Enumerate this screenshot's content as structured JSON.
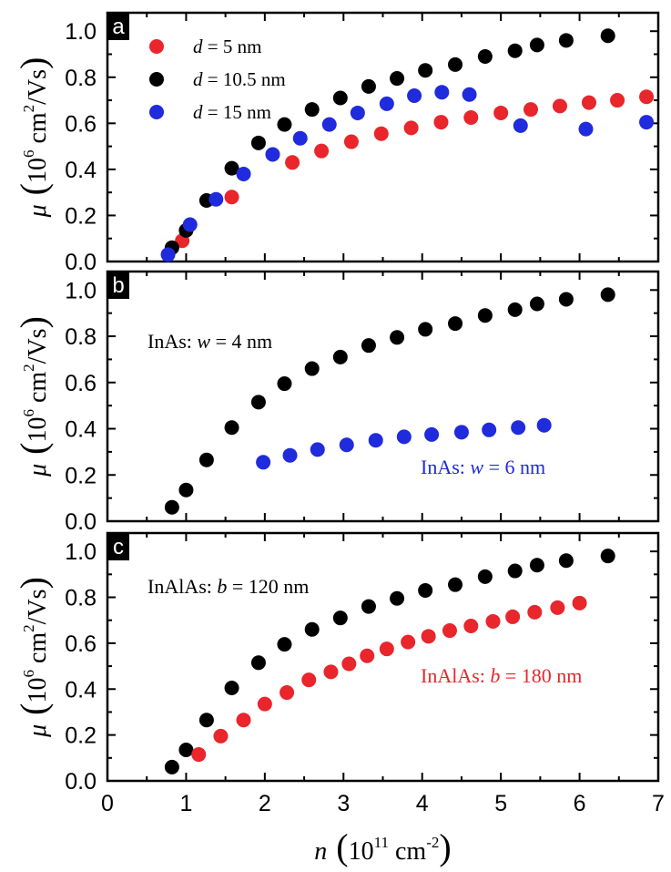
{
  "figure": {
    "x_axis": {
      "symbol": "n",
      "unit_prefix": "10",
      "unit_exp": "11",
      "unit_body": " cm",
      "unit_exp2": "-2",
      "range": [
        0,
        7
      ],
      "ticks": [
        "0",
        "1",
        "2",
        "3",
        "4",
        "5",
        "6",
        "7"
      ]
    },
    "y_axis": {
      "symbol": "μ",
      "unit_prefix": "10",
      "unit_exp": "6",
      "unit_body": " cm",
      "unit_exp2": "2",
      "unit_tail": "/Vs",
      "range": [
        0,
        1.08
      ],
      "ticks": [
        "0.0",
        "0.2",
        "0.4",
        "0.6",
        "0.8",
        "1.0"
      ]
    }
  },
  "colors": {
    "black": "#000000",
    "red": "#e8262b",
    "blue": "#1f2bdc"
  },
  "chart_data": [
    {
      "type": "scatter",
      "panel": "a",
      "xlabel": "n (10^11 cm^-2)",
      "ylabel": "μ (10^6 cm^2/Vs)",
      "xlim": [
        0,
        7
      ],
      "ylim": [
        0,
        1.08
      ],
      "legend_position": "top-left",
      "series": [
        {
          "name": "d = 5 nm",
          "label_var": "d",
          "label_rest": " = 5 nm",
          "color": "#e8262b",
          "x": [
            0.95,
            1.58,
            2.35,
            2.72,
            3.1,
            3.48,
            3.86,
            4.24,
            4.62,
            5.0,
            5.38,
            5.75,
            6.12,
            6.48,
            6.85
          ],
          "y": [
            0.09,
            0.28,
            0.43,
            0.48,
            0.52,
            0.555,
            0.58,
            0.605,
            0.625,
            0.645,
            0.66,
            0.675,
            0.69,
            0.7,
            0.715
          ]
        },
        {
          "name": "d = 10.5 nm",
          "label_var": "d",
          "label_rest": " = 10.5 nm",
          "color": "#000000",
          "x": [
            0.82,
            1.0,
            1.26,
            1.58,
            1.92,
            2.25,
            2.6,
            2.96,
            3.32,
            3.68,
            4.04,
            4.42,
            4.8,
            5.18,
            5.46,
            5.83,
            6.36
          ],
          "y": [
            0.06,
            0.135,
            0.265,
            0.405,
            0.515,
            0.595,
            0.66,
            0.71,
            0.76,
            0.795,
            0.83,
            0.855,
            0.89,
            0.915,
            0.94,
            0.96,
            0.98
          ]
        },
        {
          "name": "d = 15 nm",
          "label_var": "d",
          "label_rest": " = 15 nm",
          "color": "#1f2bdc",
          "x": [
            0.77,
            1.05,
            1.38,
            1.73,
            2.1,
            2.45,
            2.82,
            3.18,
            3.55,
            3.9,
            4.25,
            4.6,
            5.25,
            6.08,
            6.85
          ],
          "y": [
            0.03,
            0.16,
            0.27,
            0.38,
            0.465,
            0.535,
            0.595,
            0.645,
            0.685,
            0.72,
            0.735,
            0.725,
            0.59,
            0.575,
            0.605
          ]
        }
      ]
    },
    {
      "type": "scatter",
      "panel": "b",
      "xlabel": "n (10^11 cm^-2)",
      "ylabel": "μ (10^6 cm^2/Vs)",
      "xlim": [
        0,
        7
      ],
      "ylim": [
        0,
        1.08
      ],
      "series": [
        {
          "name": "InAs: w = 4 nm",
          "label_pre": "InAs: ",
          "label_var": "w",
          "label_rest": " = 4 nm",
          "color": "#000000",
          "x": [
            0.82,
            1.0,
            1.26,
            1.58,
            1.92,
            2.25,
            2.6,
            2.96,
            3.32,
            3.68,
            4.04,
            4.42,
            4.8,
            5.18,
            5.46,
            5.83,
            6.36
          ],
          "y": [
            0.06,
            0.135,
            0.265,
            0.405,
            0.515,
            0.595,
            0.66,
            0.71,
            0.76,
            0.795,
            0.83,
            0.855,
            0.89,
            0.915,
            0.94,
            0.96,
            0.98
          ]
        },
        {
          "name": "InAs: w = 6 nm",
          "label_pre": "InAs: ",
          "label_var": "w",
          "label_rest": " = 6 nm",
          "color": "#1f2bdc",
          "x": [
            1.98,
            2.32,
            2.67,
            3.04,
            3.41,
            3.77,
            4.12,
            4.5,
            4.85,
            5.22,
            5.55
          ],
          "y": [
            0.255,
            0.285,
            0.31,
            0.33,
            0.35,
            0.365,
            0.375,
            0.385,
            0.395,
            0.405,
            0.415
          ]
        }
      ]
    },
    {
      "type": "scatter",
      "panel": "c",
      "xlabel": "n (10^11 cm^-2)",
      "ylabel": "μ (10^6 cm^2/Vs)",
      "xlim": [
        0,
        7
      ],
      "ylim": [
        0,
        1.08
      ],
      "series": [
        {
          "name": "InAlAs: b = 120 nm",
          "label_pre": "InAlAs: ",
          "label_var": "b",
          "label_rest": " = 120 nm",
          "color": "#000000",
          "x": [
            0.82,
            1.0,
            1.26,
            1.58,
            1.92,
            2.25,
            2.6,
            2.96,
            3.32,
            3.68,
            4.04,
            4.42,
            4.8,
            5.18,
            5.46,
            5.83,
            6.36
          ],
          "y": [
            0.06,
            0.135,
            0.265,
            0.405,
            0.515,
            0.595,
            0.66,
            0.71,
            0.76,
            0.795,
            0.83,
            0.855,
            0.89,
            0.915,
            0.94,
            0.96,
            0.98
          ]
        },
        {
          "name": "InAlAs: b = 180 nm",
          "label_pre": "InAlAs: ",
          "label_var": "b",
          "label_rest": " = 180 nm",
          "color": "#e8262b",
          "x": [
            1.16,
            1.44,
            1.73,
            2.0,
            2.28,
            2.56,
            2.84,
            3.07,
            3.3,
            3.55,
            3.82,
            4.08,
            4.35,
            4.62,
            4.9,
            5.15,
            5.43,
            5.72,
            6.0
          ],
          "y": [
            0.115,
            0.195,
            0.265,
            0.335,
            0.385,
            0.44,
            0.475,
            0.51,
            0.545,
            0.575,
            0.605,
            0.63,
            0.655,
            0.675,
            0.695,
            0.715,
            0.735,
            0.755,
            0.775
          ]
        }
      ]
    }
  ]
}
